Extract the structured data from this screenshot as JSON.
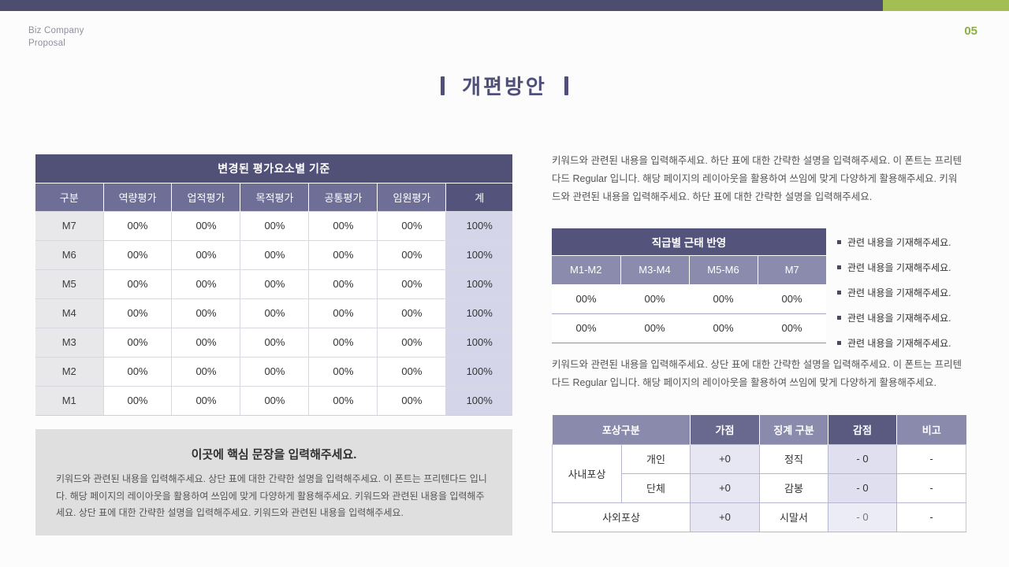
{
  "page": {
    "brand_line1": "Biz Company",
    "brand_line2": "Proposal",
    "page_number": "05",
    "title": "개편방안"
  },
  "colors": {
    "top_bar_purple": "#4d4d70",
    "accent_green": "#a3bf54",
    "page_number_green": "#8caf45",
    "title_purple": "#4f4f7a",
    "table_header_dark": "#515178",
    "table_header_mid": "#6e6e96",
    "table_subheader": "#8b8bad",
    "total_cell_purple": "#d5d5e9",
    "row_label_gray": "#e8e8eb",
    "highlight_box_gray": "#dfdfdf"
  },
  "left_table": {
    "title": "변경된 평가요소별 기준",
    "headers": [
      "구분",
      "역량평가",
      "업적평가",
      "목적평가",
      "공통평가",
      "임원평가",
      "계"
    ],
    "rows": [
      {
        "label": "M7",
        "v": [
          "00%",
          "00%",
          "00%",
          "00%",
          "00%"
        ],
        "total": "100%"
      },
      {
        "label": "M6",
        "v": [
          "00%",
          "00%",
          "00%",
          "00%",
          "00%"
        ],
        "total": "100%"
      },
      {
        "label": "M5",
        "v": [
          "00%",
          "00%",
          "00%",
          "00%",
          "00%"
        ],
        "total": "100%"
      },
      {
        "label": "M4",
        "v": [
          "00%",
          "00%",
          "00%",
          "00%",
          "00%"
        ],
        "total": "100%"
      },
      {
        "label": "M3",
        "v": [
          "00%",
          "00%",
          "00%",
          "00%",
          "00%"
        ],
        "total": "100%"
      },
      {
        "label": "M2",
        "v": [
          "00%",
          "00%",
          "00%",
          "00%",
          "00%"
        ],
        "total": "100%"
      },
      {
        "label": "M1",
        "v": [
          "00%",
          "00%",
          "00%",
          "00%",
          "00%"
        ],
        "total": "100%"
      }
    ]
  },
  "highlight_box": {
    "title": "이곳에 핵심 문장을 입력해주세요.",
    "body": "키워드와 관련된 내용을 입력해주세요. 상단 표에 대한 간략한 설명을 입력해주세요. 이 폰트는 프리텐다드 입니다. 해당 페이지의 레이아웃을 활용하여 쓰임에 맞게 다양하게 활용해주세요. 키워드와 관련된 내용을 입력해주세요. 상단 표에 대한 간략한 설명을 입력해주세요. 키워드와 관련된 내용을 입력해주세요."
  },
  "right": {
    "paragraph_top": "키워드와 관련된 내용을 입력해주세요. 하단 표에 대한 간략한 설명을 입력해주세요. 이 폰트는 프리텐다드 Regular 입니다. 해당 페이지의 레이아웃을 활용하여 쓰임에 맞게 다양하게 활용해주세요. 키워드와 관련된 내용을 입력해주세요. 하단 표에 대한 간략한 설명을 입력해주세요.",
    "paragraph_mid": "키워드와 관련된 내용을 입력해주세요. 상단 표에 대한 간략한 설명을 입력해주세요. 이 폰트는 프리텐다드 Regular 입니다. 해당 페이지의 레이아웃을 활용하여 쓰임에 맞게 다양하게 활용해주세요.",
    "bullets": [
      "관련 내용을 기재해주세요.",
      "관련 내용을 기재해주세요.",
      "관련 내용을 기재해주세요.",
      "관련 내용을 기재해주세요.",
      "관련 내용을 기재해주세요."
    ]
  },
  "attendance_table": {
    "title": "직급별 근태 반영",
    "headers": [
      "M1-M2",
      "M3-M4",
      "M5-M6",
      "M7"
    ],
    "rows": [
      [
        "00%",
        "00%",
        "00%",
        "00%"
      ],
      [
        "00%",
        "00%",
        "00%",
        "00%"
      ]
    ]
  },
  "reward_table": {
    "headers": [
      "포상구분",
      "가점",
      "징계 구분",
      "감점",
      "비고"
    ],
    "row1": {
      "group": "사내포상",
      "sub": "개인",
      "plus": "+0",
      "disc": "정직",
      "minus": "- 0",
      "note": "-"
    },
    "row2": {
      "sub": "단체",
      "plus": "+0",
      "disc": "감봉",
      "minus": "- 0",
      "note": "-"
    },
    "row3": {
      "group": "사외포상",
      "plus": "+0",
      "disc": "시말서",
      "minus": "- 0",
      "note": "-"
    }
  }
}
